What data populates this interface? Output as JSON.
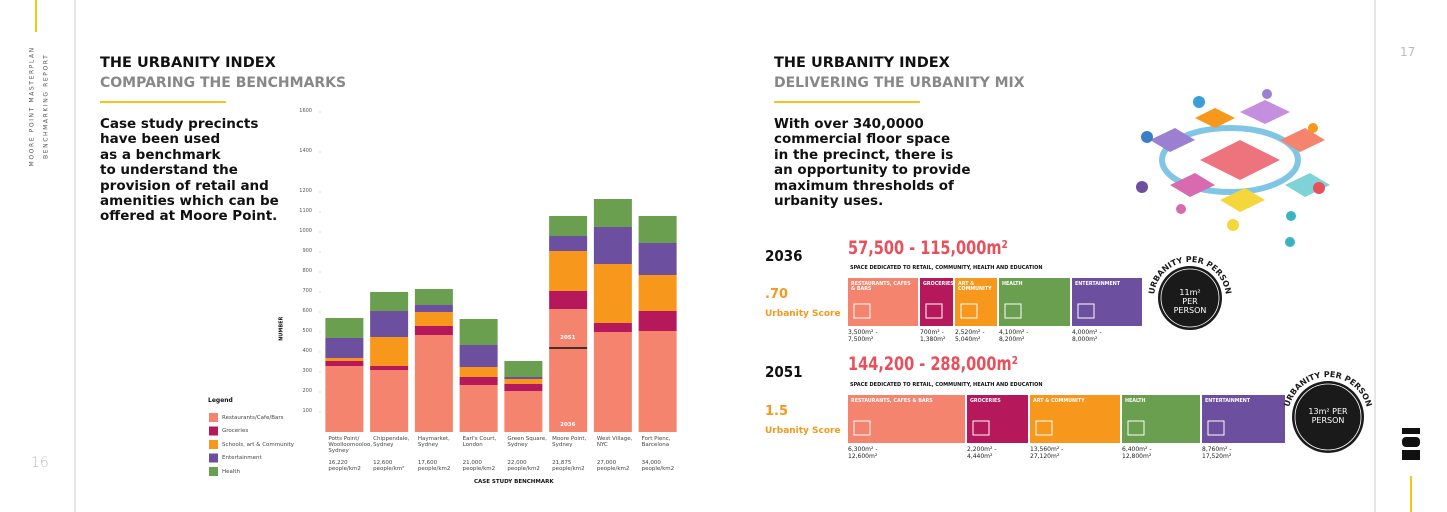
{
  "sidebar": {
    "title": "MOORE POINT MASTERPLAN",
    "subtitle": "BENCHMARKING REPORT"
  },
  "left": {
    "page": "16",
    "title": "THE URBANITY INDEX",
    "subtitle": "COMPARING THE BENCHMARKS",
    "body": [
      "Case study precincts",
      "have been used",
      "as a benchmark",
      "to understand the",
      "provision of retail and",
      "amenities which can be",
      "offered at Moore Point."
    ]
  },
  "chart_data": {
    "type": "bar",
    "stacked": true,
    "ylabel": "NUMBER",
    "xlabel": "CASE STUDY BENCHMARK",
    "legend_title": "Legend",
    "categories": [
      "Potts Point/ Woolloomooloo, Sydney",
      "Chippendale, Sydney",
      "Haymarket, Sydney",
      "Earl's Court, London",
      "Green Square, Sydney",
      "Moore Point, Sydney",
      "West Village, NYC",
      "Fort Pienc, Barcelona"
    ],
    "densities": [
      "16,220 people/km2",
      "12,600 people/km²",
      "17,600 people/km2",
      "21,000 people/km2",
      "22,000 people/km2",
      "21,875 people/km2",
      "27,000 people/km2",
      "34,000 people/km2"
    ],
    "annotations": [
      "2051",
      "2036"
    ],
    "series": [
      {
        "name": "Restaurants/Cafe/Bars",
        "color": "#f4846e",
        "values": [
          330,
          310,
          485,
          235,
          205,
          615,
          500,
          505
        ]
      },
      {
        "name": "Groceries",
        "color": "#b5195b",
        "values": [
          25,
          20,
          45,
          40,
          35,
          90,
          45,
          100
        ]
      },
      {
        "name": "Schools, art & Community",
        "color": "#f7981d",
        "values": [
          15,
          145,
          70,
          50,
          25,
          200,
          295,
          180
        ]
      },
      {
        "name": "Entertainment",
        "color": "#6c4f9e",
        "values": [
          100,
          130,
          35,
          110,
          10,
          75,
          185,
          160
        ]
      },
      {
        "name": "Health",
        "color": "#6a9f4f",
        "values": [
          100,
          95,
          80,
          130,
          80,
          100,
          140,
          135
        ]
      }
    ],
    "ylim": [
      0,
      1600
    ],
    "yticks": [
      100,
      200,
      300,
      400,
      500,
      600,
      700,
      800,
      900,
      1000,
      1100,
      1200,
      1400,
      1600
    ]
  },
  "right": {
    "page": "17",
    "title": "THE URBANITY INDEX",
    "subtitle": "DELIVERING THE URBANITY MIX",
    "body": [
      "With over 340,0000",
      "commercial floor space",
      "in the precinct, there is",
      "an opportunity to provide",
      "maximum thresholds of",
      "urbanity uses."
    ],
    "scenarios": [
      {
        "year": "2036",
        "range": "57,500 - 115,000m²",
        "note": "SPACE DEDICATED TO RETAIL, COMMUNITY, HEALTH AND EDUCATION",
        "score": ".70",
        "score_label": "Urbanity Score",
        "arc": "URBANITY PER PERSON",
        "per_person": "11m² PER PERSON",
        "segments": [
          {
            "label": "RESTAURANTS, CAFES & BARS",
            "value": "3,500m² - 7,500m²"
          },
          {
            "label": "GROCERIES",
            "value": "700m² - 1,380m²"
          },
          {
            "label": "ART & COMMUNITY",
            "value": "2,520m² - 5,040m²"
          },
          {
            "label": "HEALTH",
            "value": "4,100m² - 8,200m²"
          },
          {
            "label": "ENTERTAINMENT",
            "value": "4,000m² - 8,000m²"
          }
        ]
      },
      {
        "year": "2051",
        "range": "144,200 - 288,000m²",
        "note": "SPACE DEDICATED TO RETAIL, COMMUNITY, HEALTH AND EDUCATION",
        "score": "1.5",
        "score_label": "Urbanity Score",
        "arc": "URBANITY PER PERSON",
        "per_person": "13m² PER PERSON",
        "segments": [
          {
            "label": "RESTAURANTS, CAFES & BARS",
            "value": "6,300m² - 12,600m²"
          },
          {
            "label": "GROCERIES",
            "value": "2,200m² - 4,440m²"
          },
          {
            "label": "ART & COMMUNITY",
            "value": "13,560m² - 27,120m²"
          },
          {
            "label": "HEALTH",
            "value": "6,400m² - 12,800m²"
          },
          {
            "label": "ENTERTAINMENT",
            "value": "8,760m² - 17,520m²"
          }
        ]
      }
    ]
  }
}
